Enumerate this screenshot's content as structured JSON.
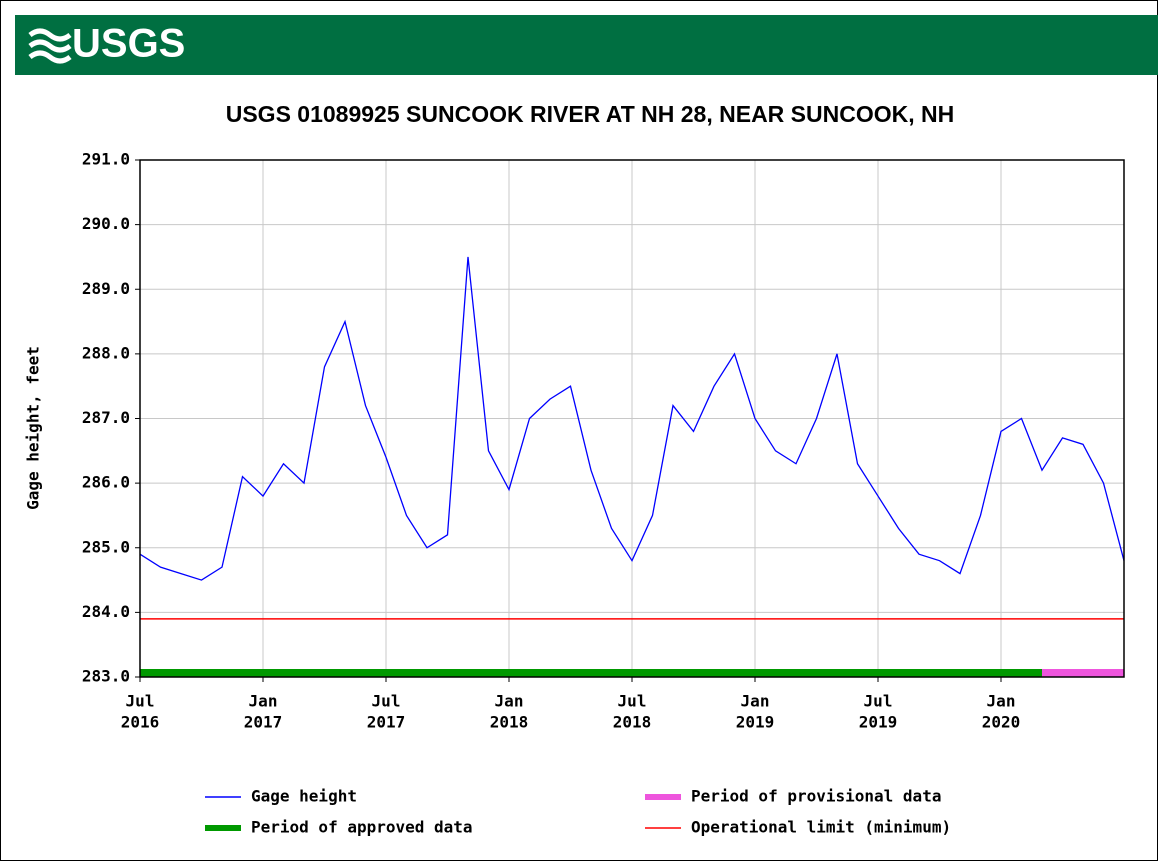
{
  "logo": "USGS",
  "chart_data": {
    "type": "line",
    "title": "USGS 01089925 SUNCOOK RIVER AT NH 28, NEAR SUNCOOK, NH",
    "y_label": "Gage height, feet",
    "x": [
      "2016-07",
      "2016-08",
      "2016-09",
      "2016-10",
      "2016-11",
      "2016-12",
      "2017-01",
      "2017-02",
      "2017-03",
      "2017-04",
      "2017-05",
      "2017-06",
      "2017-07",
      "2017-08",
      "2017-09",
      "2017-10",
      "2017-11",
      "2017-12",
      "2018-01",
      "2018-02",
      "2018-03",
      "2018-04",
      "2018-05",
      "2018-06",
      "2018-07",
      "2018-08",
      "2018-09",
      "2018-10",
      "2018-11",
      "2018-12",
      "2019-01",
      "2019-02",
      "2019-03",
      "2019-04",
      "2019-05",
      "2019-06",
      "2019-07",
      "2019-08",
      "2019-09",
      "2019-10",
      "2019-11",
      "2019-12",
      "2020-01",
      "2020-02",
      "2020-03",
      "2020-04",
      "2020-05",
      "2020-06",
      "2020-07"
    ],
    "series": [
      {
        "name": "Gage height",
        "color": "#0000ff",
        "values": [
          284.9,
          284.7,
          284.6,
          284.5,
          284.7,
          286.1,
          285.8,
          286.3,
          286.0,
          287.8,
          288.5,
          287.2,
          286.4,
          285.5,
          285.0,
          285.2,
          289.5,
          286.5,
          285.9,
          287.0,
          287.3,
          287.5,
          286.2,
          285.3,
          284.8,
          285.5,
          287.2,
          286.8,
          287.5,
          288.0,
          287.0,
          286.5,
          286.3,
          287.0,
          288.0,
          286.3,
          285.8,
          285.3,
          284.9,
          284.8,
          284.6,
          285.5,
          286.8,
          287.0,
          286.2,
          286.7,
          286.6,
          286.0,
          284.8
        ]
      }
    ],
    "periods": [
      {
        "name": "Period of approved data",
        "color": "#009900",
        "start": "2016-07",
        "end": "2020-03"
      },
      {
        "name": "Period of provisional data",
        "color": "#ee55dd",
        "start": "2020-03",
        "end": "2020-07"
      }
    ],
    "limit": {
      "name": "Operational limit (minimum)",
      "color": "#ff0000",
      "value": 283.9
    },
    "xlim": [
      "2016-07",
      "2020-07"
    ],
    "xticks": [
      {
        "value": "2016-07",
        "label": [
          "Jul",
          "2016"
        ]
      },
      {
        "value": "2017-01",
        "label": [
          "Jan",
          "2017"
        ]
      },
      {
        "value": "2017-07",
        "label": [
          "Jul",
          "2017"
        ]
      },
      {
        "value": "2018-01",
        "label": [
          "Jan",
          "2018"
        ]
      },
      {
        "value": "2018-07",
        "label": [
          "Jul",
          "2018"
        ]
      },
      {
        "value": "2019-01",
        "label": [
          "Jan",
          "2019"
        ]
      },
      {
        "value": "2019-07",
        "label": [
          "Jul",
          "2019"
        ]
      },
      {
        "value": "2020-01",
        "label": [
          "Jan",
          "2020"
        ]
      }
    ],
    "ylim": [
      283,
      291
    ],
    "yticks": [
      {
        "value": 283,
        "label": "283.0"
      },
      {
        "value": 284,
        "label": "284.0"
      },
      {
        "value": 285,
        "label": "285.0"
      },
      {
        "value": 286,
        "label": "286.0"
      },
      {
        "value": 287,
        "label": "287.0"
      },
      {
        "value": 288,
        "label": "288.0"
      },
      {
        "value": 289,
        "label": "289.0"
      },
      {
        "value": 290,
        "label": "290.0"
      },
      {
        "value": 291,
        "label": "291.0"
      }
    ],
    "grid": true
  }
}
